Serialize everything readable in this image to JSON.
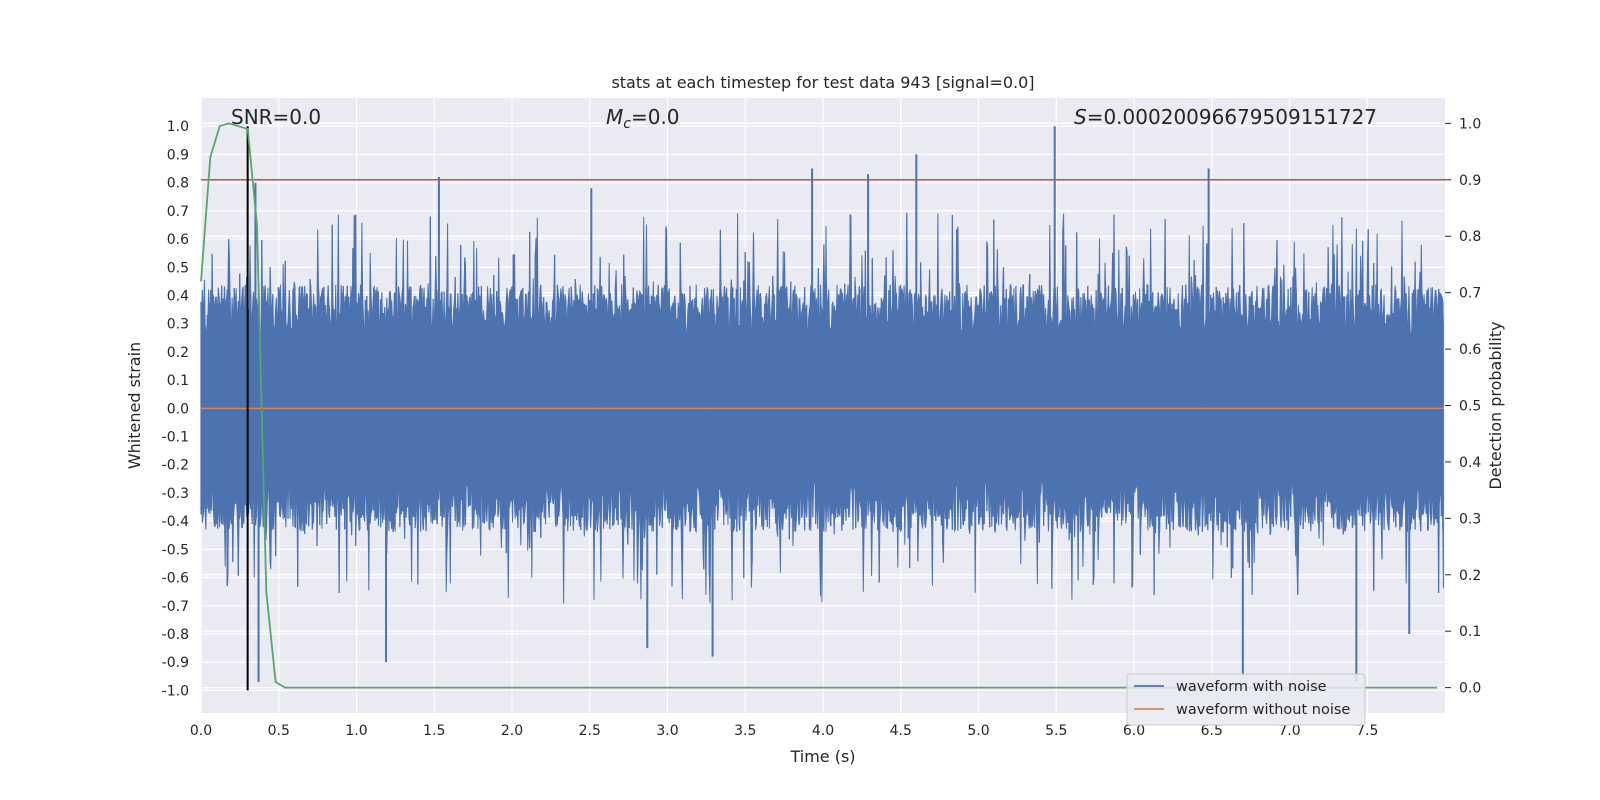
{
  "chart_data": {
    "type": "line",
    "title": "stats at each timestep for test data 943 [signal=0.0]",
    "xlabel": "Time (s)",
    "ylabel": "Whitened strain",
    "y2label": "Detection probability",
    "xlim": [
      0.0,
      8.0
    ],
    "ylim": [
      -1.08,
      1.1
    ],
    "y2lim": [
      -0.045,
      1.045
    ],
    "xticks": [
      "0.0",
      "0.5",
      "1.0",
      "1.5",
      "2.0",
      "2.5",
      "3.0",
      "3.5",
      "4.0",
      "4.5",
      "5.0",
      "5.5",
      "6.0",
      "6.5",
      "7.0",
      "7.5"
    ],
    "yticks": [
      "1.0",
      "0.9",
      "0.8",
      "0.7",
      "0.6",
      "0.5",
      "0.4",
      "0.3",
      "0.2",
      "0.1",
      "0.0",
      "-0.1",
      "-0.2",
      "-0.3",
      "-0.4",
      "-0.5",
      "-0.6",
      "-0.7",
      "-0.8",
      "-0.9",
      "-1.0"
    ],
    "y2ticks": [
      "1.0",
      "0.9",
      "0.8",
      "0.7",
      "0.6",
      "0.5",
      "0.4",
      "0.3",
      "0.2",
      "0.1",
      "0.0"
    ],
    "annotations": {
      "snr": "SNR=0.0",
      "mc_symbol": "M",
      "mc_sub": "c",
      "mc_value": "=0.0",
      "s_symbol": "S",
      "s_value": "=0.00020096679509151727"
    },
    "legend": {
      "placement": "lower-right",
      "entries": [
        "waveform with noise",
        "waveform without noise"
      ]
    },
    "threshold": {
      "axis": "right",
      "value": 0.9,
      "color": "#c44e52"
    },
    "marker_line": {
      "x": 0.3,
      "from": -1.0,
      "to": 1.0,
      "color": "#000000"
    },
    "noise_envelope": {
      "typical_max": 0.45,
      "typical_min": -0.45,
      "peak_max": 1.0,
      "peak_min": -0.97
    },
    "noise_spikes": [
      {
        "x": 0.35,
        "y": 0.8
      },
      {
        "x": 1.53,
        "y": 0.82
      },
      {
        "x": 2.51,
        "y": 0.78
      },
      {
        "x": 3.93,
        "y": 0.85
      },
      {
        "x": 4.29,
        "y": 0.83
      },
      {
        "x": 4.6,
        "y": 0.9
      },
      {
        "x": 5.49,
        "y": 1.0
      },
      {
        "x": 6.48,
        "y": 0.85
      },
      {
        "x": 0.37,
        "y": -0.97
      },
      {
        "x": 1.19,
        "y": -0.9
      },
      {
        "x": 3.29,
        "y": -0.88
      },
      {
        "x": 6.7,
        "y": -0.95
      },
      {
        "x": 7.43,
        "y": -0.97
      },
      {
        "x": 2.87,
        "y": -0.85
      },
      {
        "x": 7.77,
        "y": -0.8
      }
    ],
    "series": [
      {
        "name": "waveform with noise",
        "color": "#4c72b0",
        "axis": "left",
        "kind": "noise"
      },
      {
        "name": "waveform without noise",
        "color": "#dd8452",
        "axis": "left",
        "x": [
          0.0,
          7.99
        ],
        "values": [
          0.0,
          0.0
        ]
      },
      {
        "name": "detection probability",
        "color": "#55a868",
        "axis": "right",
        "x": [
          0.0,
          0.06,
          0.12,
          0.18,
          0.24,
          0.3,
          0.36,
          0.42,
          0.48,
          0.54,
          0.6,
          1.0,
          2.0,
          3.0,
          4.0,
          5.0,
          6.0,
          7.0,
          7.95
        ],
        "values": [
          0.72,
          0.94,
          0.995,
          1.0,
          0.995,
          0.99,
          0.82,
          0.17,
          0.01,
          0.0,
          0.0,
          0.0,
          0.0,
          0.0,
          0.0,
          0.0,
          0.0,
          0.0,
          0.0
        ]
      }
    ]
  }
}
